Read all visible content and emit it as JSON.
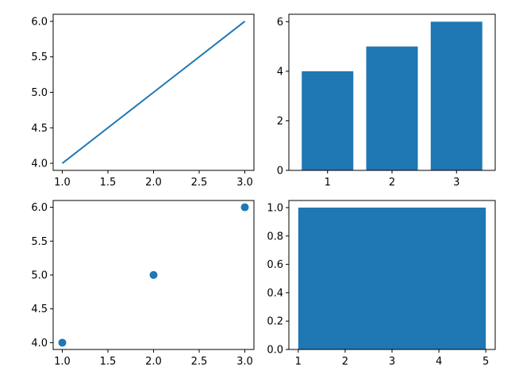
{
  "chart_data": [
    {
      "type": "line",
      "x": [
        1.0,
        2.0,
        3.0
      ],
      "series": [
        {
          "values": [
            4.0,
            5.0,
            6.0
          ]
        }
      ],
      "xlim": [
        0.9,
        3.1
      ],
      "ylim": [
        3.9,
        6.1
      ],
      "xticks": [
        1.0,
        1.5,
        2.0,
        2.5,
        3.0
      ],
      "xtick_labels": [
        "1.0",
        "1.5",
        "2.0",
        "2.5",
        "3.0"
      ],
      "yticks": [
        4.0,
        4.5,
        5.0,
        5.5,
        6.0
      ],
      "ytick_labels": [
        "4.0",
        "4.5",
        "5.0",
        "5.5",
        "6.0"
      ],
      "grid": false,
      "color": "#1f77b4"
    },
    {
      "type": "bar",
      "categories": [
        1,
        2,
        3
      ],
      "values": [
        4,
        5,
        6
      ],
      "xlim": [
        0.4,
        3.6
      ],
      "ylim": [
        0,
        6.3
      ],
      "xticks": [
        1,
        2,
        3
      ],
      "xtick_labels": [
        "1",
        "2",
        "3"
      ],
      "yticks": [
        0,
        2,
        4,
        6
      ],
      "ytick_labels": [
        "0",
        "2",
        "4",
        "6"
      ],
      "grid": false,
      "color": "#1f77b4"
    },
    {
      "type": "scatter",
      "x": [
        1.0,
        2.0,
        3.0
      ],
      "series": [
        {
          "values": [
            4.0,
            5.0,
            6.0
          ]
        }
      ],
      "xlim": [
        0.9,
        3.1
      ],
      "ylim": [
        3.9,
        6.1
      ],
      "xticks": [
        1.0,
        1.5,
        2.0,
        2.5,
        3.0
      ],
      "xtick_labels": [
        "1.0",
        "1.5",
        "2.0",
        "2.5",
        "3.0"
      ],
      "yticks": [
        4.0,
        4.5,
        5.0,
        5.5,
        6.0
      ],
      "ytick_labels": [
        "4.0",
        "4.5",
        "5.0",
        "5.5",
        "6.0"
      ],
      "grid": false,
      "color": "#1f77b4"
    },
    {
      "type": "area",
      "x": [
        1,
        5
      ],
      "series": [
        {
          "values": [
            1.0,
            1.0
          ]
        }
      ],
      "xlim": [
        0.8,
        5.2
      ],
      "ylim": [
        0.0,
        1.05
      ],
      "xticks": [
        1,
        2,
        3,
        4,
        5
      ],
      "xtick_labels": [
        "1",
        "2",
        "3",
        "4",
        "5"
      ],
      "yticks": [
        0.0,
        0.2,
        0.4,
        0.6,
        0.8,
        1.0
      ],
      "ytick_labels": [
        "0.0",
        "0.2",
        "0.4",
        "0.6",
        "0.8",
        "1.0"
      ],
      "grid": false,
      "color": "#1f77b4"
    }
  ]
}
